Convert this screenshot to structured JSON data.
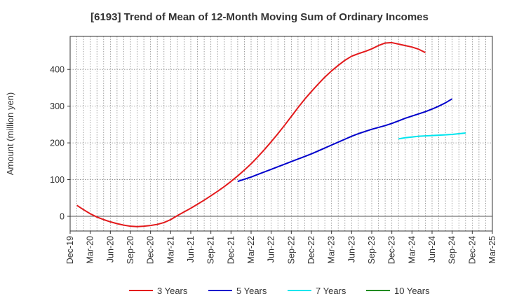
{
  "chart_data": {
    "type": "line",
    "title": "[6193]  Trend of Mean of 12-Month Moving Sum of Ordinary Incomes",
    "xlabel": "",
    "ylabel": "Amount (million yen)",
    "x_tick_labels": [
      "Dec-19",
      "Mar-20",
      "Jun-20",
      "Sep-20",
      "Dec-20",
      "Mar-21",
      "Jun-21",
      "Sep-21",
      "Dec-21",
      "Mar-22",
      "Jun-22",
      "Sep-22",
      "Dec-22",
      "Mar-23",
      "Jun-23",
      "Sep-23",
      "Dec-23",
      "Mar-24",
      "Jun-24",
      "Sep-24",
      "Dec-24",
      "Mar-25"
    ],
    "y_ticks": [
      0,
      100,
      200,
      300,
      400
    ],
    "ylim": [
      -40,
      490
    ],
    "grid": true,
    "series": [
      {
        "name": "3 Years",
        "color": "#e31a1c",
        "start_index": 1,
        "values": [
          30,
          18,
          7,
          -2,
          -9,
          -15,
          -20,
          -24,
          -27,
          -28,
          -27,
          -25,
          -22,
          -17,
          -9,
          2,
          12,
          22,
          33,
          44,
          56,
          68,
          81,
          95,
          110,
          126,
          143,
          162,
          182,
          203,
          225,
          248,
          272,
          296,
          319,
          340,
          360,
          379,
          396,
          411,
          425,
          436,
          443,
          449,
          456,
          465,
          472,
          473,
          469,
          465,
          461,
          455,
          446
        ]
      },
      {
        "name": "5 Years",
        "color": "#0000cc",
        "start_index": 25,
        "values": [
          95,
          101,
          107,
          114,
          121,
          128,
          135,
          142,
          149,
          156,
          163,
          170,
          178,
          186,
          194,
          202,
          210,
          218,
          225,
          231,
          237,
          242,
          247,
          253,
          260,
          267,
          273,
          279,
          285,
          292,
          300,
          309,
          320
        ]
      },
      {
        "name": "7 Years",
        "color": "#00e5ee",
        "start_index": 49,
        "values": [
          211,
          214,
          216,
          218,
          219,
          220,
          221,
          222,
          223,
          225,
          227
        ]
      },
      {
        "name": "10 Years",
        "color": "#228b22",
        "start_index": 0,
        "values": []
      }
    ]
  }
}
